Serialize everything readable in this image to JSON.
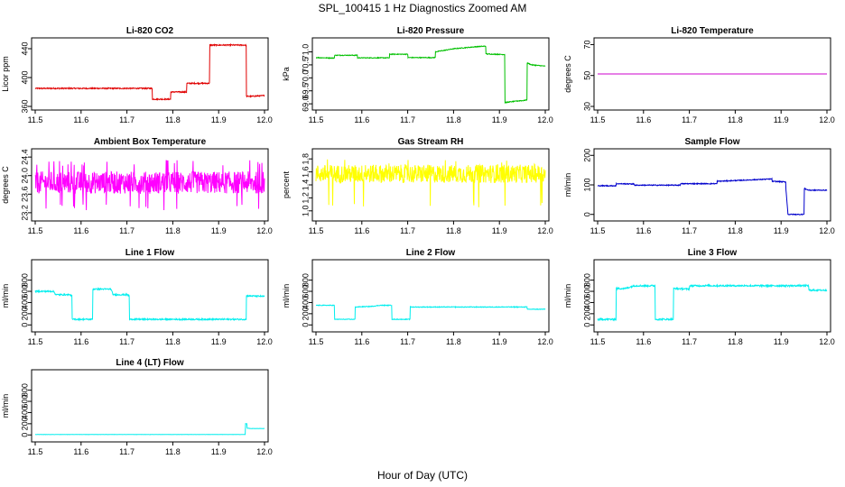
{
  "figure": {
    "title": "SPL_100415  1 Hz Diagnostics Zoomed AM",
    "xlabel": "Hour of Day (UTC)"
  },
  "chart_data": [
    {
      "type": "line",
      "title": "Li-820 CO2",
      "ylabel": "Licor ppm",
      "color": "#e00000",
      "xlim": [
        11.5,
        12.0
      ],
      "ylim": [
        360,
        450
      ],
      "yticks": [
        360,
        400,
        440
      ],
      "xticks": [
        11.5,
        11.6,
        11.7,
        11.8,
        11.9,
        12.0
      ],
      "noise": 0.8,
      "series": [
        {
          "x": [
            11.5,
            11.755,
            11.755,
            11.795,
            11.795,
            11.83,
            11.83,
            11.88,
            11.88,
            11.96,
            11.96,
            11.97,
            12.0
          ],
          "y": [
            385,
            385,
            370,
            370,
            380,
            380,
            392,
            392,
            445,
            445,
            374,
            374,
            375
          ]
        }
      ]
    },
    {
      "type": "line",
      "title": "Li-820 Pressure",
      "ylabel": "kPa",
      "color": "#00c000",
      "xlim": [
        11.5,
        12.0
      ],
      "ylim": [
        68.9,
        71.4
      ],
      "yticks": [
        69.0,
        69.5,
        70.0,
        70.5,
        71.0
      ],
      "xticks": [
        11.5,
        11.6,
        11.7,
        11.8,
        11.9,
        12.0
      ],
      "noise": 0.015,
      "series": [
        {
          "x": [
            11.5,
            11.54,
            11.54,
            11.59,
            11.59,
            11.66,
            11.66,
            11.7,
            11.7,
            11.76,
            11.76,
            11.8,
            11.85,
            11.87,
            11.87,
            11.91,
            11.912,
            11.912,
            11.945,
            11.95,
            11.96,
            11.96,
            11.97,
            12.0
          ],
          "y": [
            70.78,
            70.76,
            70.87,
            70.87,
            70.77,
            70.77,
            70.91,
            70.91,
            70.78,
            70.78,
            71.0,
            71.12,
            71.2,
            71.22,
            70.92,
            70.9,
            70.9,
            69.05,
            69.12,
            69.12,
            69.15,
            70.58,
            70.5,
            70.45
          ]
        }
      ]
    },
    {
      "type": "line",
      "title": "Li-820 Temperature",
      "ylabel": "degrees C",
      "color": "#cc00cc",
      "xlim": [
        11.5,
        12.0
      ],
      "ylim": [
        30,
        72
      ],
      "yticks": [
        30,
        50,
        70
      ],
      "xticks": [
        11.5,
        11.6,
        11.7,
        11.8,
        11.9,
        12.0
      ],
      "noise": 0,
      "series": [
        {
          "x": [
            11.5,
            12.0
          ],
          "y": [
            51,
            51
          ]
        }
      ]
    },
    {
      "type": "line",
      "title": "Ambient Box Temperature",
      "ylabel": "degrees C",
      "color": "#ff00ff",
      "xlim": [
        11.5,
        12.0
      ],
      "ylim": [
        23.1,
        24.5
      ],
      "yticks": [
        23.2,
        23.6,
        24.0,
        24.4
      ],
      "xticks": [
        11.5,
        11.6,
        11.7,
        11.8,
        11.9,
        12.0
      ],
      "noise": 0.24,
      "spikes": {
        "prob": 0.05,
        "low": 23.25,
        "high": 24.35
      },
      "series": [
        {
          "x": [
            11.5,
            12.0
          ],
          "y": [
            23.85,
            23.85
          ]
        }
      ]
    },
    {
      "type": "line",
      "title": "Gas Stream RH",
      "ylabel": "percent",
      "color": "#ffff00",
      "xlim": [
        11.5,
        12.0
      ],
      "ylim": [
        0.9,
        1.9
      ],
      "yticks": [
        1.0,
        1.2,
        1.4,
        1.6,
        1.8
      ],
      "xticks": [
        11.5,
        11.6,
        11.7,
        11.8,
        11.9,
        12.0
      ],
      "noise": 0.14,
      "spikes": {
        "prob": 0.04,
        "low": 1.05,
        "high": 1.8
      },
      "series": [
        {
          "x": [
            11.5,
            12.0
          ],
          "y": [
            1.57,
            1.57
          ]
        }
      ]
    },
    {
      "type": "line",
      "title": "Sample Flow",
      "ylabel": "ml/min",
      "color": "#0000cc",
      "xlim": [
        11.5,
        12.0
      ],
      "ylim": [
        -10,
        210
      ],
      "yticks": [
        0,
        100,
        200
      ],
      "xticks": [
        11.5,
        11.6,
        11.7,
        11.8,
        11.9,
        12.0
      ],
      "noise": 1.5,
      "series": [
        {
          "x": [
            11.5,
            11.54,
            11.54,
            11.58,
            11.58,
            11.68,
            11.68,
            11.76,
            11.76,
            11.88,
            11.88,
            11.91,
            11.91,
            11.915,
            11.95,
            11.95,
            11.96,
            12.0
          ],
          "y": [
            97,
            97,
            104,
            103,
            99,
            99,
            104,
            104,
            112,
            120,
            112,
            110,
            98,
            0,
            0,
            88,
            82,
            82
          ]
        }
      ]
    },
    {
      "type": "line",
      "title": "Line 1 Flow",
      "ylabel": "ml/min",
      "color": "#00eeee",
      "xlim": [
        11.5,
        12.0
      ],
      "ylim": [
        -60,
        1100
      ],
      "yticks": [
        0,
        200,
        400,
        600,
        800
      ],
      "xticks": [
        11.5,
        11.6,
        11.7,
        11.8,
        11.9,
        12.0
      ],
      "noise": 12,
      "series": [
        {
          "x": [
            11.5,
            11.54,
            11.545,
            11.575,
            11.58,
            11.58,
            11.625,
            11.625,
            11.665,
            11.67,
            11.7,
            11.705,
            11.705,
            11.96,
            11.96,
            12.0
          ],
          "y": [
            600,
            600,
            540,
            540,
            520,
            100,
            100,
            640,
            640,
            540,
            540,
            520,
            100,
            100,
            520,
            510
          ]
        }
      ]
    },
    {
      "type": "line",
      "title": "Line 2 Flow",
      "ylabel": "ml/min",
      "color": "#00eeee",
      "xlim": [
        11.5,
        12.0
      ],
      "ylim": [
        -60,
        1100
      ],
      "yticks": [
        0,
        200,
        400,
        600,
        800
      ],
      "xticks": [
        11.5,
        11.6,
        11.7,
        11.8,
        11.9,
        12.0
      ],
      "noise": 6,
      "series": [
        {
          "x": [
            11.5,
            11.54,
            11.54,
            11.585,
            11.585,
            11.62,
            11.64,
            11.665,
            11.665,
            11.705,
            11.705,
            11.96,
            11.96,
            12.0
          ],
          "y": [
            350,
            350,
            100,
            100,
            320,
            330,
            350,
            350,
            100,
            100,
            320,
            320,
            280,
            280
          ]
        }
      ]
    },
    {
      "type": "line",
      "title": "Line 3 Flow",
      "ylabel": "ml/min",
      "color": "#00eeee",
      "xlim": [
        11.5,
        12.0
      ],
      "ylim": [
        -60,
        1100
      ],
      "yticks": [
        0,
        200,
        400,
        600,
        800
      ],
      "xticks": [
        11.5,
        11.6,
        11.7,
        11.8,
        11.9,
        12.0
      ],
      "noise": 14,
      "series": [
        {
          "x": [
            11.5,
            11.54,
            11.54,
            11.56,
            11.58,
            11.625,
            11.625,
            11.665,
            11.665,
            11.7,
            11.7,
            11.96,
            11.96,
            12.0
          ],
          "y": [
            100,
            100,
            650,
            650,
            700,
            700,
            100,
            100,
            650,
            640,
            700,
            700,
            620,
            620
          ]
        }
      ]
    },
    {
      "type": "line",
      "title": "Line 4 (LT) Flow",
      "ylabel": "ml/min",
      "color": "#00eeee",
      "xlim": [
        11.5,
        12.0
      ],
      "ylim": [
        -60,
        1100
      ],
      "yticks": [
        0,
        200,
        400,
        600,
        800
      ],
      "xticks": [
        11.5,
        11.6,
        11.7,
        11.8,
        11.9,
        12.0
      ],
      "noise": 2,
      "series": [
        {
          "x": [
            11.5,
            11.958,
            11.958,
            11.962,
            11.962,
            11.97,
            12.0
          ],
          "y": [
            8,
            8,
            200,
            200,
            120,
            115,
            115
          ]
        }
      ]
    }
  ]
}
